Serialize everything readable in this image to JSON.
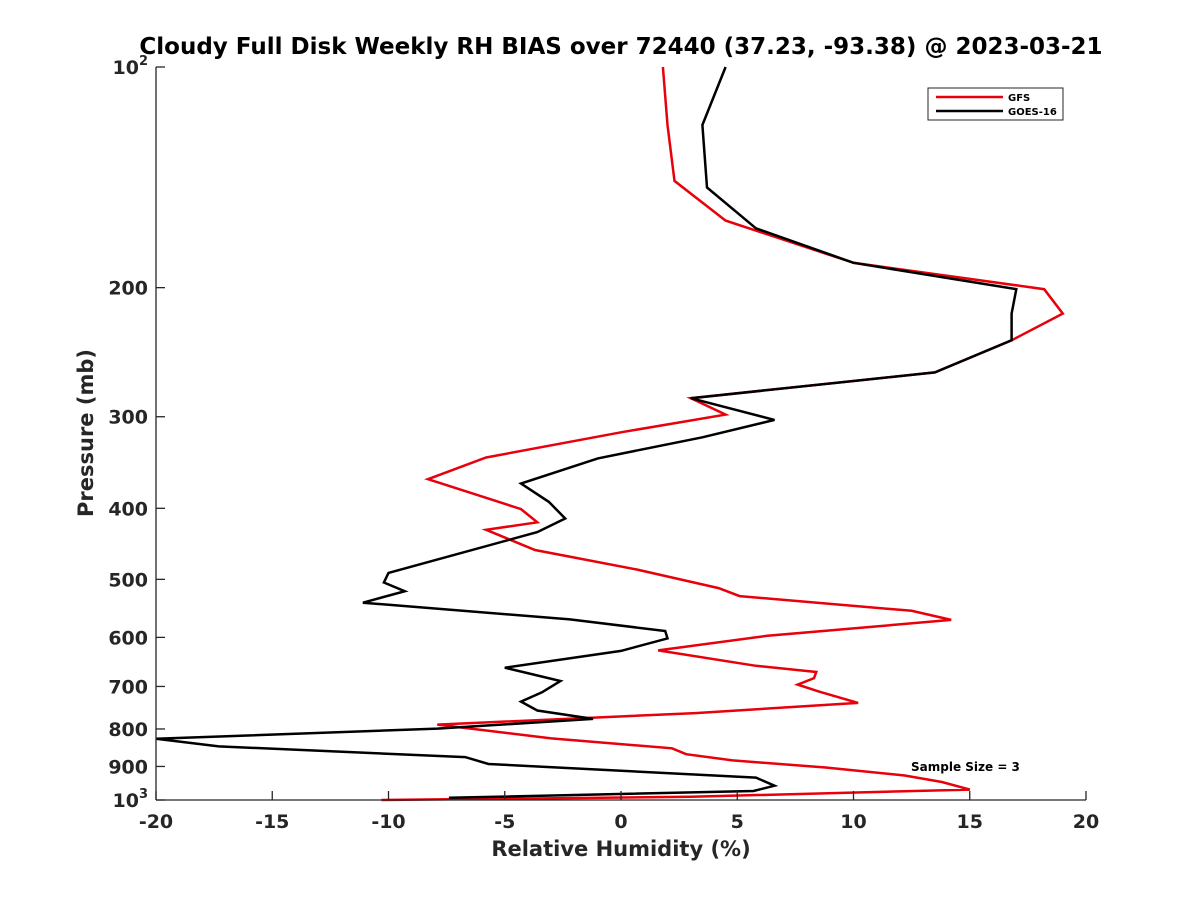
{
  "chart_data": {
    "type": "line",
    "title": "Cloudy Full Disk Weekly RH BIAS over 72440 (37.23, -93.38) @ 2023-03-21",
    "xlabel": "Relative Humidity (%)",
    "ylabel": "Pressure (mb)",
    "xlim": [
      -20,
      20
    ],
    "ylim": [
      100,
      1000
    ],
    "y_scale": "log",
    "y_reversed": true,
    "x_ticks": [
      -20,
      -15,
      -10,
      -5,
      0,
      5,
      10,
      15,
      20
    ],
    "x_tick_labels": [
      "-20",
      "-15",
      "-10",
      "-5",
      "0",
      "5",
      "10",
      "15",
      "20"
    ],
    "y_ticks": [
      100,
      200,
      300,
      400,
      500,
      600,
      700,
      800,
      900,
      1000
    ],
    "y_tick_labels": [
      {
        "base": "10",
        "exp": "2"
      },
      {
        "base": "200",
        "exp": ""
      },
      {
        "base": "300",
        "exp": ""
      },
      {
        "base": "400",
        "exp": ""
      },
      {
        "base": "500",
        "exp": ""
      },
      {
        "base": "600",
        "exp": ""
      },
      {
        "base": "700",
        "exp": ""
      },
      {
        "base": "800",
        "exp": ""
      },
      {
        "base": "900",
        "exp": ""
      },
      {
        "base": "10",
        "exp": "3"
      }
    ],
    "grid": false,
    "legend_position": "top-right",
    "annotation": "Sample Size = 3",
    "series": [
      {
        "name": "GFS",
        "color": "#e8000b",
        "x": [
          1.8,
          2.0,
          2.3,
          4.5,
          10.0,
          18.2,
          19.0,
          16.8,
          13.5,
          3.0,
          4.5,
          0.0,
          -5.8,
          -8.3,
          -5.8,
          -4.3,
          -3.6,
          -5.8,
          -3.7,
          0.7,
          4.2,
          5.1,
          12.5,
          14.2,
          6.3,
          1.6,
          5.8,
          8.4,
          8.3,
          7.6,
          8.5,
          10.2,
          3.2,
          -7.9,
          -3.0,
          2.2,
          2.8,
          4.8,
          8.8,
          12.2,
          13.8,
          15.0,
          3.0,
          -10.3
        ],
        "y": [
          100,
          120,
          143,
          162,
          185,
          201,
          217,
          236,
          261,
          283,
          298,
          315,
          341,
          365,
          387,
          401,
          418,
          428,
          456,
          485,
          514,
          527,
          552,
          568,
          597,
          625,
          656,
          669,
          682,
          696,
          711,
          737,
          761,
          789,
          824,
          850,
          866,
          883,
          903,
          926,
          945,
          968,
          990,
          1000
        ]
      },
      {
        "name": "GOES-16",
        "color": "#000000",
        "x": [
          4.5,
          3.5,
          3.7,
          5.8,
          10.0,
          17.0,
          16.8,
          16.8,
          13.5,
          3.0,
          6.6,
          3.5,
          -1.0,
          -4.3,
          -3.1,
          -2.4,
          -3.6,
          -10.0,
          -10.2,
          -9.3,
          -11.1,
          -2.2,
          1.9,
          2.0,
          0.0,
          -5.0,
          -2.6,
          -3.4,
          -4.3,
          -3.6,
          -1.2,
          -7.9,
          -20.0,
          -17.3,
          -6.7,
          -5.7,
          5.8,
          6.6,
          5.7,
          -7.4
        ],
        "y": [
          100,
          120,
          146,
          166,
          185,
          201,
          217,
          236,
          261,
          283,
          303,
          320,
          342,
          370,
          392,
          413,
          431,
          490,
          505,
          519,
          538,
          567,
          588,
          602,
          626,
          660,
          688,
          713,
          734,
          755,
          775,
          799,
          825,
          845,
          874,
          893,
          932,
          956,
          972,
          993
        ]
      }
    ]
  }
}
